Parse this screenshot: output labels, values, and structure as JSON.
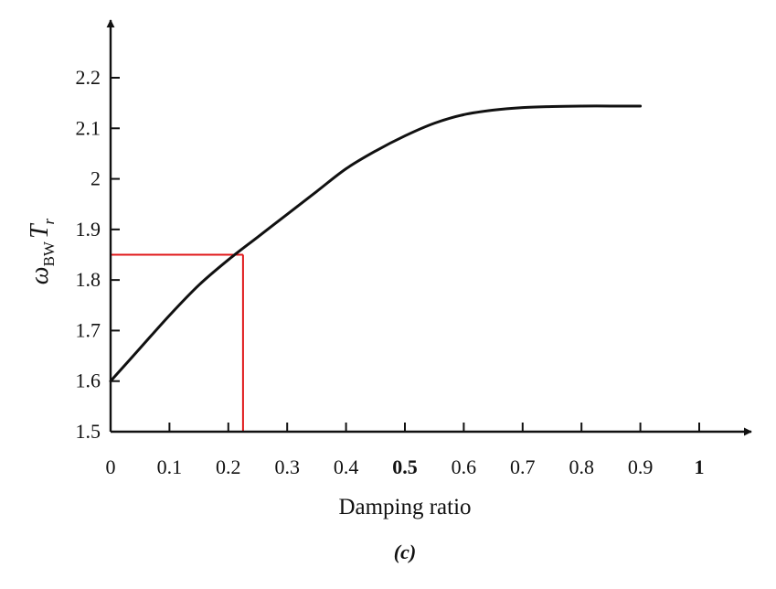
{
  "chart_data": {
    "type": "line",
    "xlabel": "Damping ratio",
    "ylabel_main": "ω",
    "ylabel_sub1": "BW",
    "ylabel_main2": "T",
    "ylabel_sub2": "r",
    "caption": "(c)",
    "xlim": [
      0,
      1.0
    ],
    "ylim": [
      1.5,
      2.2
    ],
    "xticks": [
      "0",
      "0.1",
      "0.2",
      "0.3",
      "0.4",
      "0.5",
      "0.6",
      "0.7",
      "0.8",
      "0.9",
      "1"
    ],
    "yticks": [
      "1.5",
      "1.6",
      "1.7",
      "1.8",
      "1.9",
      "2",
      "2.1",
      "2.2"
    ],
    "grid": false,
    "series": [
      {
        "x": [
          0,
          0.05,
          0.1,
          0.15,
          0.2,
          0.25,
          0.3,
          0.35,
          0.4,
          0.45,
          0.5,
          0.55,
          0.6,
          0.65,
          0.7,
          0.75,
          0.8,
          0.85,
          0.9
        ],
        "y": [
          1.6,
          1.665,
          1.73,
          1.79,
          1.84,
          1.885,
          1.93,
          1.975,
          2.02,
          2.055,
          2.085,
          2.11,
          2.127,
          2.136,
          2.141,
          2.143,
          2.144,
          2.144,
          2.144
        ],
        "color": "#111111"
      }
    ],
    "annotation": {
      "x": 0.225,
      "y": 1.85,
      "color": "#e0191b"
    }
  }
}
